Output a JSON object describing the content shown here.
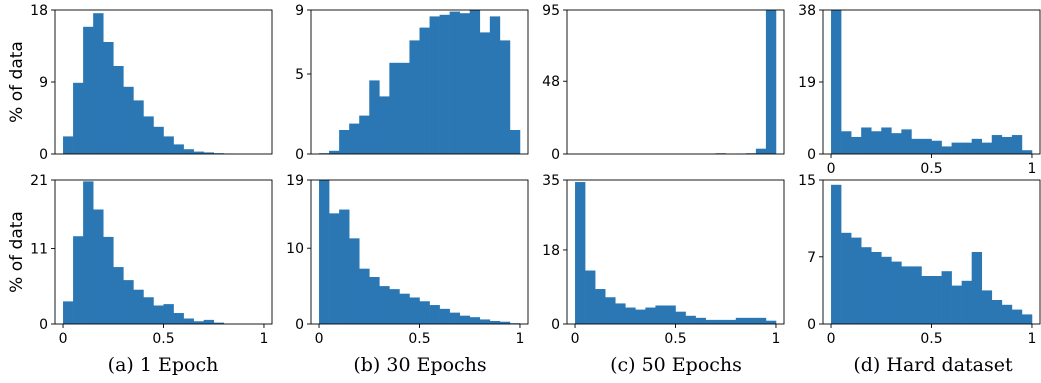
{
  "figure": {
    "ylabel": "% of data",
    "captions": [
      "(a) 1 Epoch",
      "(b) 30 Epochs",
      "(c) 50 Epochs",
      "(d) Hard dataset"
    ],
    "bar_color": "#2a77b4"
  },
  "chart_data": [
    {
      "type": "bar",
      "panel": "(a) 1 Epoch",
      "row": "top",
      "xlim": [
        0,
        1
      ],
      "ylim": [
        0,
        18
      ],
      "yticks": [
        0,
        9,
        18
      ],
      "xticks": [],
      "bin_width": 0.05,
      "bins_start": 0,
      "values": [
        2.2,
        8.9,
        15.9,
        17.6,
        14.0,
        11.0,
        8.4,
        6.7,
        4.7,
        3.4,
        2.2,
        1.2,
        0.6,
        0.3,
        0.2,
        0.1,
        0.05,
        0,
        0,
        0
      ]
    },
    {
      "type": "bar",
      "panel": "(b) 30 Epochs",
      "row": "top",
      "xlim": [
        0,
        1
      ],
      "ylim": [
        0,
        9
      ],
      "yticks": [
        0,
        5,
        9
      ],
      "xticks": [],
      "bin_width": 0.05,
      "bins_start": 0,
      "values": [
        0.05,
        0.2,
        1.5,
        1.9,
        2.4,
        4.6,
        3.6,
        5.7,
        5.7,
        7.1,
        7.9,
        8.6,
        8.7,
        8.9,
        8.8,
        9.0,
        7.6,
        8.6,
        7.1,
        1.5
      ]
    },
    {
      "type": "bar",
      "panel": "(c) 50 Epochs",
      "row": "top",
      "xlim": [
        0,
        1
      ],
      "ylim": [
        0,
        95
      ],
      "yticks": [
        0,
        48,
        95
      ],
      "xticks": [],
      "bin_width": 0.05,
      "bins_start": 0,
      "values": [
        0,
        0,
        0,
        0,
        0,
        0,
        0,
        0,
        0,
        0,
        0,
        0,
        0,
        0,
        0.5,
        0,
        0.2,
        0.5,
        3.5,
        95
      ]
    },
    {
      "type": "bar",
      "panel": "(d) Hard dataset",
      "row": "top",
      "xlim": [
        0,
        1
      ],
      "ylim": [
        0,
        38
      ],
      "yticks": [
        0,
        19,
        38
      ],
      "xticks": [
        "0",
        "0.5",
        "1"
      ],
      "bin_width": 0.05,
      "bins_start": 0,
      "values": [
        38,
        6,
        4.5,
        7,
        6,
        7,
        5.5,
        6.5,
        4,
        4,
        3.5,
        2,
        3,
        3,
        4,
        3,
        5,
        4.5,
        5,
        1
      ]
    },
    {
      "type": "bar",
      "panel": "(a) 1 Epoch",
      "row": "bottom",
      "xlim": [
        0,
        1
      ],
      "ylim": [
        0,
        21
      ],
      "yticks": [
        0,
        11,
        21
      ],
      "xticks": [
        "0",
        "0.5",
        "1"
      ],
      "bin_width": 0.05,
      "bins_start": 0,
      "values": [
        3.3,
        12.8,
        20.8,
        16.7,
        12.7,
        8.3,
        6.4,
        5.0,
        3.9,
        2.7,
        2.9,
        1.6,
        0.8,
        0.4,
        0.6,
        0.2,
        0,
        0,
        0,
        0
      ]
    },
    {
      "type": "bar",
      "panel": "(b) 30 Epochs",
      "row": "bottom",
      "xlim": [
        0,
        1
      ],
      "ylim": [
        0,
        19
      ],
      "yticks": [
        0,
        10,
        19
      ],
      "xticks": [
        "0",
        "0.5",
        "1"
      ],
      "bin_width": 0.05,
      "bins_start": 0,
      "values": [
        19.3,
        14.6,
        15.1,
        11.3,
        7.3,
        6.2,
        5.0,
        4.6,
        4.0,
        3.5,
        3.0,
        2.5,
        2.0,
        1.5,
        1.1,
        0.9,
        0.6,
        0.4,
        0.3,
        0.1
      ]
    },
    {
      "type": "bar",
      "panel": "(c) 50 Epochs",
      "row": "bottom",
      "xlim": [
        0,
        1
      ],
      "ylim": [
        0,
        35
      ],
      "yticks": [
        0,
        18,
        35
      ],
      "xticks": [
        "0",
        "0.5",
        "1"
      ],
      "bin_width": 0.05,
      "bins_start": 0,
      "values": [
        34.5,
        13,
        8.5,
        6.5,
        5,
        4,
        3.5,
        4,
        4.5,
        4.5,
        3,
        2,
        1.5,
        1,
        1,
        1,
        1.5,
        1.5,
        1.5,
        0.8
      ]
    },
    {
      "type": "bar",
      "panel": "(d) Hard dataset",
      "row": "bottom",
      "xlim": [
        0,
        1
      ],
      "ylim": [
        0,
        15
      ],
      "yticks": [
        0,
        7,
        15
      ],
      "xticks": [
        "0",
        "0.5",
        "1"
      ],
      "bin_width": 0.05,
      "bins_start": 0,
      "values": [
        14.5,
        9.5,
        9,
        8,
        7.5,
        7,
        6.5,
        6,
        6,
        5,
        5,
        5.5,
        4,
        4.5,
        7.5,
        3.5,
        2.5,
        2,
        1.5,
        1
      ]
    }
  ]
}
